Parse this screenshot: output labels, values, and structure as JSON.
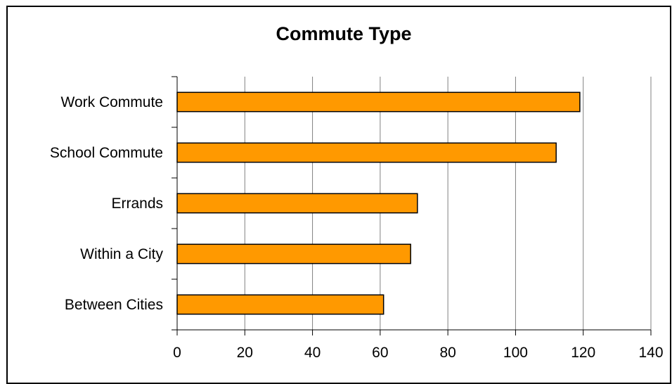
{
  "chart_data": {
    "type": "bar",
    "orientation": "horizontal",
    "title": "Commute Type",
    "xlabel": "",
    "ylabel": "",
    "categories": [
      "Work Commute",
      "School Commute",
      "Errands",
      "Within a City",
      "Between Cities"
    ],
    "values": [
      119,
      112,
      71,
      69,
      61
    ],
    "xlim": [
      0,
      140
    ],
    "xticks": [
      0,
      20,
      40,
      60,
      80,
      100,
      120,
      140
    ],
    "xtick_labels": [
      "0",
      "20",
      "40",
      "60",
      "80",
      "100",
      "120",
      "140"
    ],
    "grid": "vertical",
    "legend": "none",
    "colors": {
      "bar_fill": "#FF9900",
      "bar_stroke": "#000000",
      "grid": "#808080",
      "axis": "#000000",
      "border": "#000000"
    }
  }
}
